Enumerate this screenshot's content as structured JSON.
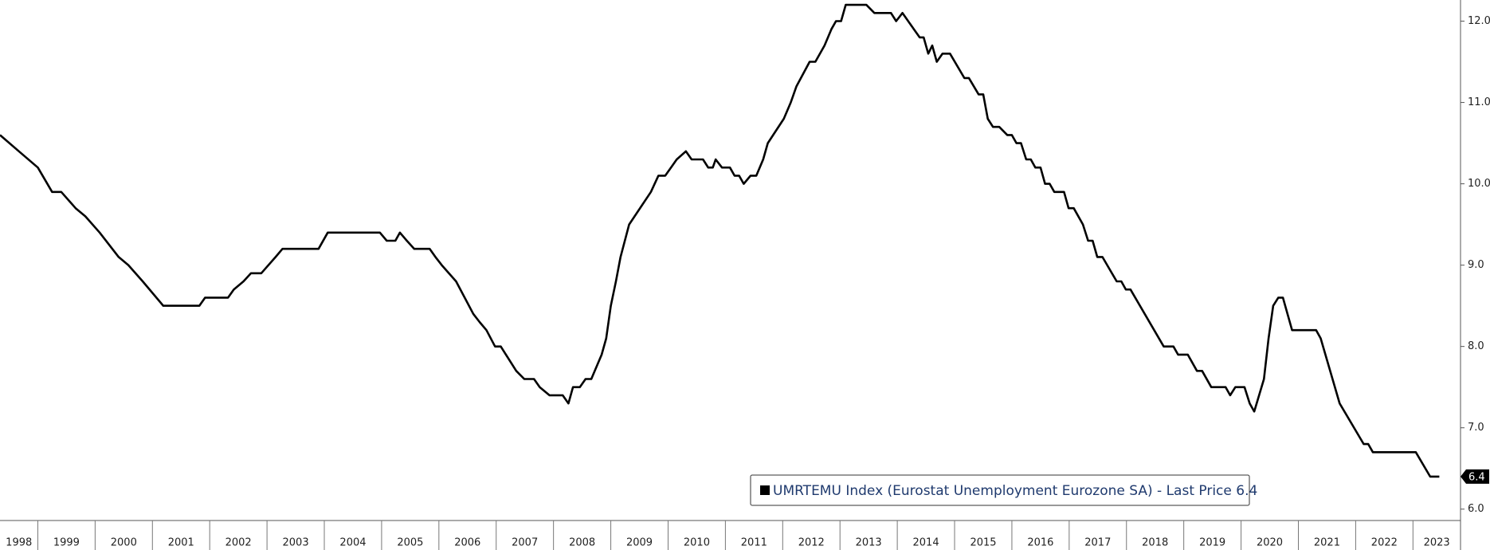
{
  "chart_data": {
    "type": "line",
    "x": [
      1998.34,
      1998.67,
      1999.0,
      1999.25,
      1999.41,
      1999.66,
      1999.83,
      2000.08,
      2000.41,
      2000.58,
      2000.83,
      2001.19,
      2001.82,
      2001.92,
      2002.32,
      2002.42,
      2002.59,
      2002.72,
      2002.9,
      2003.15,
      2003.27,
      2003.9,
      2004.06,
      2004.97,
      2005.09,
      2005.24,
      2005.32,
      2005.44,
      2005.57,
      2005.84,
      2005.94,
      2006.05,
      2006.3,
      2006.6,
      2006.71,
      2006.83,
      2006.98,
      2007.08,
      2007.35,
      2007.49,
      2007.66,
      2007.76,
      2007.93,
      2008.16,
      2008.26,
      2008.34,
      2008.46,
      2008.56,
      2008.66,
      2008.84,
      2008.92,
      2009.0,
      2009.09,
      2009.17,
      2009.32,
      2009.7,
      2009.83,
      2009.95,
      2010.05,
      2010.15,
      2010.31,
      2010.41,
      2010.61,
      2010.7,
      2010.78,
      2010.83,
      2010.94,
      2011.08,
      2011.16,
      2011.24,
      2011.32,
      2011.44,
      2011.54,
      2011.66,
      2011.74,
      2012.02,
      2012.14,
      2012.24,
      2012.47,
      2012.57,
      2012.73,
      2012.85,
      2012.93,
      2013.02,
      2013.1,
      2013.46,
      2013.6,
      2013.89,
      2013.98,
      2014.09,
      2014.29,
      2014.39,
      2014.46,
      2014.54,
      2014.61,
      2014.69,
      2014.79,
      2014.92,
      2015.17,
      2015.25,
      2015.42,
      2015.5,
      2015.58,
      2015.67,
      2015.78,
      2015.92,
      2016.0,
      2016.08,
      2016.16,
      2016.25,
      2016.33,
      2016.41,
      2016.5,
      2016.58,
      2016.66,
      2016.74,
      2016.91,
      2016.99,
      2017.08,
      2017.24,
      2017.33,
      2017.41,
      2017.49,
      2017.58,
      2017.83,
      2017.91,
      2017.99,
      2018.07,
      2018.65,
      2018.82,
      2018.9,
      2019.07,
      2019.23,
      2019.32,
      2019.48,
      2019.73,
      2019.81,
      2019.9,
      2020.06,
      2020.15,
      2020.23,
      2020.4,
      2020.48,
      2020.56,
      2020.65,
      2020.73,
      2020.89,
      2021.31,
      2021.39,
      2021.72,
      2022.14,
      2022.22,
      2022.3,
      2023.05,
      2023.3,
      2023.46
    ],
    "series": [
      {
        "name": "UMRTEMU Index (Eurostat Unemployment Eurozone SA) - Last Price 6.4",
        "color": "#000000",
        "values": [
          10.6,
          10.4,
          10.2,
          9.9,
          9.9,
          9.7,
          9.6,
          9.4,
          9.1,
          9.0,
          8.8,
          8.5,
          8.5,
          8.6,
          8.6,
          8.7,
          8.8,
          8.9,
          8.9,
          9.1,
          9.2,
          9.2,
          9.4,
          9.4,
          9.3,
          9.3,
          9.4,
          9.3,
          9.2,
          9.2,
          9.1,
          9.0,
          8.8,
          8.4,
          8.3,
          8.2,
          8.0,
          8.0,
          7.7,
          7.6,
          7.6,
          7.5,
          7.4,
          7.4,
          7.3,
          7.5,
          7.5,
          7.6,
          7.6,
          7.9,
          8.1,
          8.5,
          8.8,
          9.1,
          9.5,
          9.9,
          10.1,
          10.1,
          10.2,
          10.3,
          10.4,
          10.3,
          10.3,
          10.2,
          10.2,
          10.3,
          10.2,
          10.2,
          10.1,
          10.1,
          10.0,
          10.1,
          10.1,
          10.3,
          10.5,
          10.8,
          11.0,
          11.2,
          11.5,
          11.5,
          11.7,
          11.9,
          12.0,
          12.0,
          12.2,
          12.2,
          12.1,
          12.1,
          12.0,
          12.1,
          11.9,
          11.8,
          11.8,
          11.6,
          11.7,
          11.5,
          11.6,
          11.6,
          11.3,
          11.3,
          11.1,
          11.1,
          10.8,
          10.7,
          10.7,
          10.6,
          10.6,
          10.5,
          10.5,
          10.3,
          10.3,
          10.2,
          10.2,
          10.0,
          10.0,
          9.9,
          9.9,
          9.7,
          9.7,
          9.5,
          9.3,
          9.3,
          9.1,
          9.1,
          8.8,
          8.8,
          8.7,
          8.7,
          8.0,
          8.0,
          7.9,
          7.9,
          7.7,
          7.7,
          7.5,
          7.5,
          7.4,
          7.5,
          7.5,
          7.3,
          7.2,
          7.6,
          8.1,
          8.5,
          8.6,
          8.6,
          8.2,
          8.2,
          8.1,
          7.3,
          6.8,
          6.8,
          6.7,
          6.7,
          6.4,
          6.4
        ]
      }
    ],
    "last_price": 6.4,
    "xlim": [
      1998.34,
      2023.83
    ],
    "xticks": [
      1998,
      1999,
      2000,
      2001,
      2002,
      2003,
      2004,
      2005,
      2006,
      2007,
      2008,
      2009,
      2010,
      2011,
      2012,
      2013,
      2014,
      2015,
      2016,
      2017,
      2018,
      2019,
      2020,
      2021,
      2022,
      2023
    ],
    "ylim": [
      5.86,
      12.26
    ],
    "yticks": [
      {
        "value": 6,
        "label": "6.0"
      },
      {
        "value": 7,
        "label": "7.0"
      },
      {
        "value": 8,
        "label": "8.0"
      },
      {
        "value": 9,
        "label": "9.0"
      },
      {
        "value": 10,
        "label": "10.0"
      },
      {
        "value": 11,
        "label": "11.0"
      },
      {
        "value": 12,
        "label": "12.0"
      }
    ],
    "legend": "bottom-right"
  }
}
